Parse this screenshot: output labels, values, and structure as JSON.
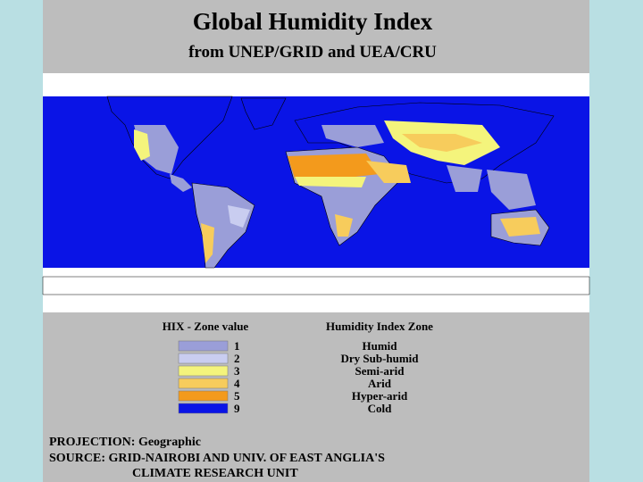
{
  "header": {
    "title": "Global Humidity Index",
    "subtitle": "from UNEP/GRID and UEA/CRU"
  },
  "legend": {
    "heading_value": "HIX - Zone value",
    "heading_zone": "Humidity Index Zone",
    "items": [
      {
        "value": 1,
        "zone": "Humid",
        "color": "#9a9ed8"
      },
      {
        "value": 2,
        "zone": "Dry Sub-humid",
        "color": "#c9cdf0"
      },
      {
        "value": 3,
        "zone": "Semi-arid",
        "color": "#f4f47c"
      },
      {
        "value": 4,
        "zone": "Arid",
        "color": "#f7cc5c"
      },
      {
        "value": 5,
        "zone": "Hyper-arid",
        "color": "#f39a1c"
      },
      {
        "value": 9,
        "zone": "Cold",
        "color": "#0a14e6"
      }
    ]
  },
  "footer": {
    "projection_label": "PROJECTION:",
    "projection": "Geographic",
    "source_label": "SOURCE:",
    "source": "GRID-NAIROBI AND UNIV. OF EAST ANGLIA'S",
    "source_cont": "CLIMATE RESEARCH UNIT"
  }
}
